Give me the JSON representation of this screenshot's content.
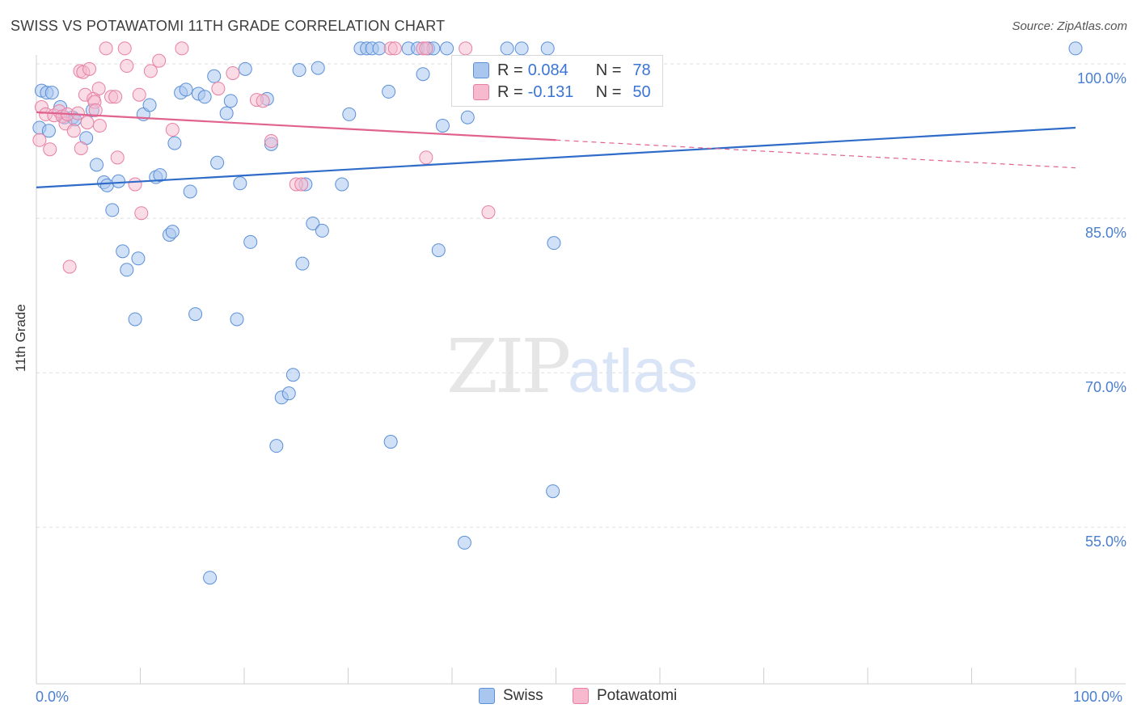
{
  "header": {
    "title": "SWISS VS POTAWATOMI 11TH GRADE CORRELATION CHART",
    "source": "Source: ZipAtlas.com"
  },
  "watermark": {
    "zip": "ZIP",
    "atlas": "atlas"
  },
  "colors": {
    "swiss_fill": "#a9c6ef",
    "swiss_stroke": "#5b8fd8",
    "swiss_line": "#2f6cc9",
    "pota_fill": "#f6b9cd",
    "pota_stroke": "#e77fa2",
    "pota_line": "#e0628d",
    "grid": "#dddddd",
    "axis_text": "#4a7fd0"
  },
  "stats": {
    "swiss": {
      "r_label": "R =",
      "r_value": "0.084",
      "n_label": "N =",
      "n_value": "78"
    },
    "potawatomi": {
      "r_label": "R =",
      "r_value": "-0.131",
      "n_label": "N =",
      "n_value": "50"
    }
  },
  "legend": {
    "swiss": "Swiss",
    "potawatomi": "Potawatomi"
  },
  "chart_data": {
    "type": "scatter",
    "title": "SWISS VS POTAWATOMI 11TH GRADE CORRELATION CHART",
    "xlabel": "",
    "ylabel": "11th Grade",
    "xlim": [
      0,
      100
    ],
    "ylim": [
      40,
      101.5
    ],
    "x_tick_labels": [
      "0.0%",
      "100.0%"
    ],
    "y_ticks": [
      100,
      85,
      70,
      55
    ],
    "y_tick_labels": [
      "100.0%",
      "85.0%",
      "70.0%",
      "55.0%"
    ],
    "series": [
      {
        "name": "Swiss",
        "trend": {
          "x": [
            0,
            100
          ],
          "y": [
            88.0,
            93.8
          ]
        },
        "points": [
          {
            "x": 0.3,
            "y": 93.8
          },
          {
            "x": 0.5,
            "y": 97.4
          },
          {
            "x": 1.0,
            "y": 97.2
          },
          {
            "x": 1.2,
            "y": 93.5
          },
          {
            "x": 1.5,
            "y": 97.2
          },
          {
            "x": 2.3,
            "y": 95.8
          },
          {
            "x": 2.7,
            "y": 94.8
          },
          {
            "x": 3.5,
            "y": 94.8
          },
          {
            "x": 3.7,
            "y": 94.6
          },
          {
            "x": 4.8,
            "y": 92.8
          },
          {
            "x": 5.4,
            "y": 95.5
          },
          {
            "x": 5.8,
            "y": 90.2
          },
          {
            "x": 6.5,
            "y": 88.5
          },
          {
            "x": 6.8,
            "y": 88.2
          },
          {
            "x": 7.3,
            "y": 85.8
          },
          {
            "x": 7.9,
            "y": 88.6
          },
          {
            "x": 8.3,
            "y": 81.8
          },
          {
            "x": 8.7,
            "y": 80.0
          },
          {
            "x": 9.5,
            "y": 75.2
          },
          {
            "x": 9.8,
            "y": 81.1
          },
          {
            "x": 10.3,
            "y": 95.1
          },
          {
            "x": 10.9,
            "y": 96.0
          },
          {
            "x": 11.5,
            "y": 89.0
          },
          {
            "x": 11.9,
            "y": 89.2
          },
          {
            "x": 12.8,
            "y": 83.4
          },
          {
            "x": 13.1,
            "y": 83.7
          },
          {
            "x": 13.3,
            "y": 92.3
          },
          {
            "x": 13.9,
            "y": 97.2
          },
          {
            "x": 14.4,
            "y": 97.5
          },
          {
            "x": 14.8,
            "y": 87.6
          },
          {
            "x": 15.3,
            "y": 75.7
          },
          {
            "x": 15.6,
            "y": 97.1
          },
          {
            "x": 16.2,
            "y": 96.8
          },
          {
            "x": 16.7,
            "y": 50.1
          },
          {
            "x": 17.1,
            "y": 98.8
          },
          {
            "x": 17.4,
            "y": 90.4
          },
          {
            "x": 18.3,
            "y": 95.2
          },
          {
            "x": 18.7,
            "y": 96.4
          },
          {
            "x": 19.3,
            "y": 75.2
          },
          {
            "x": 19.6,
            "y": 88.4
          },
          {
            "x": 20.1,
            "y": 99.5
          },
          {
            "x": 20.6,
            "y": 82.7
          },
          {
            "x": 22.2,
            "y": 96.6
          },
          {
            "x": 22.6,
            "y": 92.2
          },
          {
            "x": 23.1,
            "y": 62.9
          },
          {
            "x": 23.6,
            "y": 67.6
          },
          {
            "x": 24.3,
            "y": 68.0
          },
          {
            "x": 24.7,
            "y": 69.8
          },
          {
            "x": 25.3,
            "y": 99.4
          },
          {
            "x": 25.6,
            "y": 80.6
          },
          {
            "x": 25.9,
            "y": 88.3
          },
          {
            "x": 26.6,
            "y": 84.5
          },
          {
            "x": 27.1,
            "y": 99.6
          },
          {
            "x": 27.5,
            "y": 83.8
          },
          {
            "x": 29.4,
            "y": 88.3
          },
          {
            "x": 30.1,
            "y": 95.1
          },
          {
            "x": 31.2,
            "y": 101.5
          },
          {
            "x": 31.8,
            "y": 101.5
          },
          {
            "x": 32.3,
            "y": 101.5
          },
          {
            "x": 33.0,
            "y": 101.5
          },
          {
            "x": 33.9,
            "y": 97.3
          },
          {
            "x": 34.1,
            "y": 63.3
          },
          {
            "x": 35.8,
            "y": 101.5
          },
          {
            "x": 36.7,
            "y": 101.5
          },
          {
            "x": 37.2,
            "y": 99.0
          },
          {
            "x": 37.7,
            "y": 101.5
          },
          {
            "x": 38.2,
            "y": 101.5
          },
          {
            "x": 38.7,
            "y": 81.9
          },
          {
            "x": 39.1,
            "y": 94.0
          },
          {
            "x": 39.5,
            "y": 101.5
          },
          {
            "x": 41.2,
            "y": 53.5
          },
          {
            "x": 41.5,
            "y": 94.8
          },
          {
            "x": 45.3,
            "y": 101.5
          },
          {
            "x": 46.7,
            "y": 101.5
          },
          {
            "x": 49.2,
            "y": 101.5
          },
          {
            "x": 49.7,
            "y": 58.5
          },
          {
            "x": 49.8,
            "y": 82.6
          },
          {
            "x": 100.0,
            "y": 101.5
          }
        ]
      },
      {
        "name": "Potawatomi",
        "trend": {
          "x": [
            0,
            50,
            100
          ],
          "y": [
            95.3,
            92.6,
            89.9
          ]
        },
        "points": [
          {
            "x": 0.3,
            "y": 92.6
          },
          {
            "x": 0.5,
            "y": 95.8
          },
          {
            "x": 0.9,
            "y": 95.1
          },
          {
            "x": 1.3,
            "y": 91.7
          },
          {
            "x": 1.7,
            "y": 95.0
          },
          {
            "x": 2.2,
            "y": 95.4
          },
          {
            "x": 2.5,
            "y": 94.9
          },
          {
            "x": 2.8,
            "y": 94.2
          },
          {
            "x": 3.0,
            "y": 95.1
          },
          {
            "x": 3.2,
            "y": 80.3
          },
          {
            "x": 3.6,
            "y": 93.5
          },
          {
            "x": 4.0,
            "y": 95.2
          },
          {
            "x": 4.2,
            "y": 99.3
          },
          {
            "x": 4.3,
            "y": 91.8
          },
          {
            "x": 4.5,
            "y": 99.2
          },
          {
            "x": 4.7,
            "y": 97.0
          },
          {
            "x": 4.9,
            "y": 94.3
          },
          {
            "x": 5.1,
            "y": 99.5
          },
          {
            "x": 5.5,
            "y": 96.6
          },
          {
            "x": 5.6,
            "y": 96.3
          },
          {
            "x": 5.7,
            "y": 95.5
          },
          {
            "x": 6.0,
            "y": 97.6
          },
          {
            "x": 6.1,
            "y": 94.0
          },
          {
            "x": 6.7,
            "y": 101.5
          },
          {
            "x": 7.2,
            "y": 96.8
          },
          {
            "x": 7.6,
            "y": 96.8
          },
          {
            "x": 7.8,
            "y": 90.9
          },
          {
            "x": 8.5,
            "y": 101.5
          },
          {
            "x": 8.7,
            "y": 99.8
          },
          {
            "x": 9.5,
            "y": 88.3
          },
          {
            "x": 9.9,
            "y": 97.0
          },
          {
            "x": 10.1,
            "y": 85.5
          },
          {
            "x": 11.0,
            "y": 99.3
          },
          {
            "x": 11.8,
            "y": 100.3
          },
          {
            "x": 13.1,
            "y": 93.6
          },
          {
            "x": 14.0,
            "y": 101.5
          },
          {
            "x": 17.5,
            "y": 97.6
          },
          {
            "x": 18.9,
            "y": 99.1
          },
          {
            "x": 21.2,
            "y": 96.5
          },
          {
            "x": 21.8,
            "y": 96.4
          },
          {
            "x": 22.6,
            "y": 92.5
          },
          {
            "x": 25.0,
            "y": 88.3
          },
          {
            "x": 25.5,
            "y": 88.3
          },
          {
            "x": 34.1,
            "y": 101.5
          },
          {
            "x": 34.5,
            "y": 101.5
          },
          {
            "x": 37.2,
            "y": 101.5
          },
          {
            "x": 37.5,
            "y": 101.5
          },
          {
            "x": 37.5,
            "y": 90.9
          },
          {
            "x": 41.3,
            "y": 101.5
          },
          {
            "x": 43.5,
            "y": 85.6
          }
        ]
      }
    ]
  }
}
